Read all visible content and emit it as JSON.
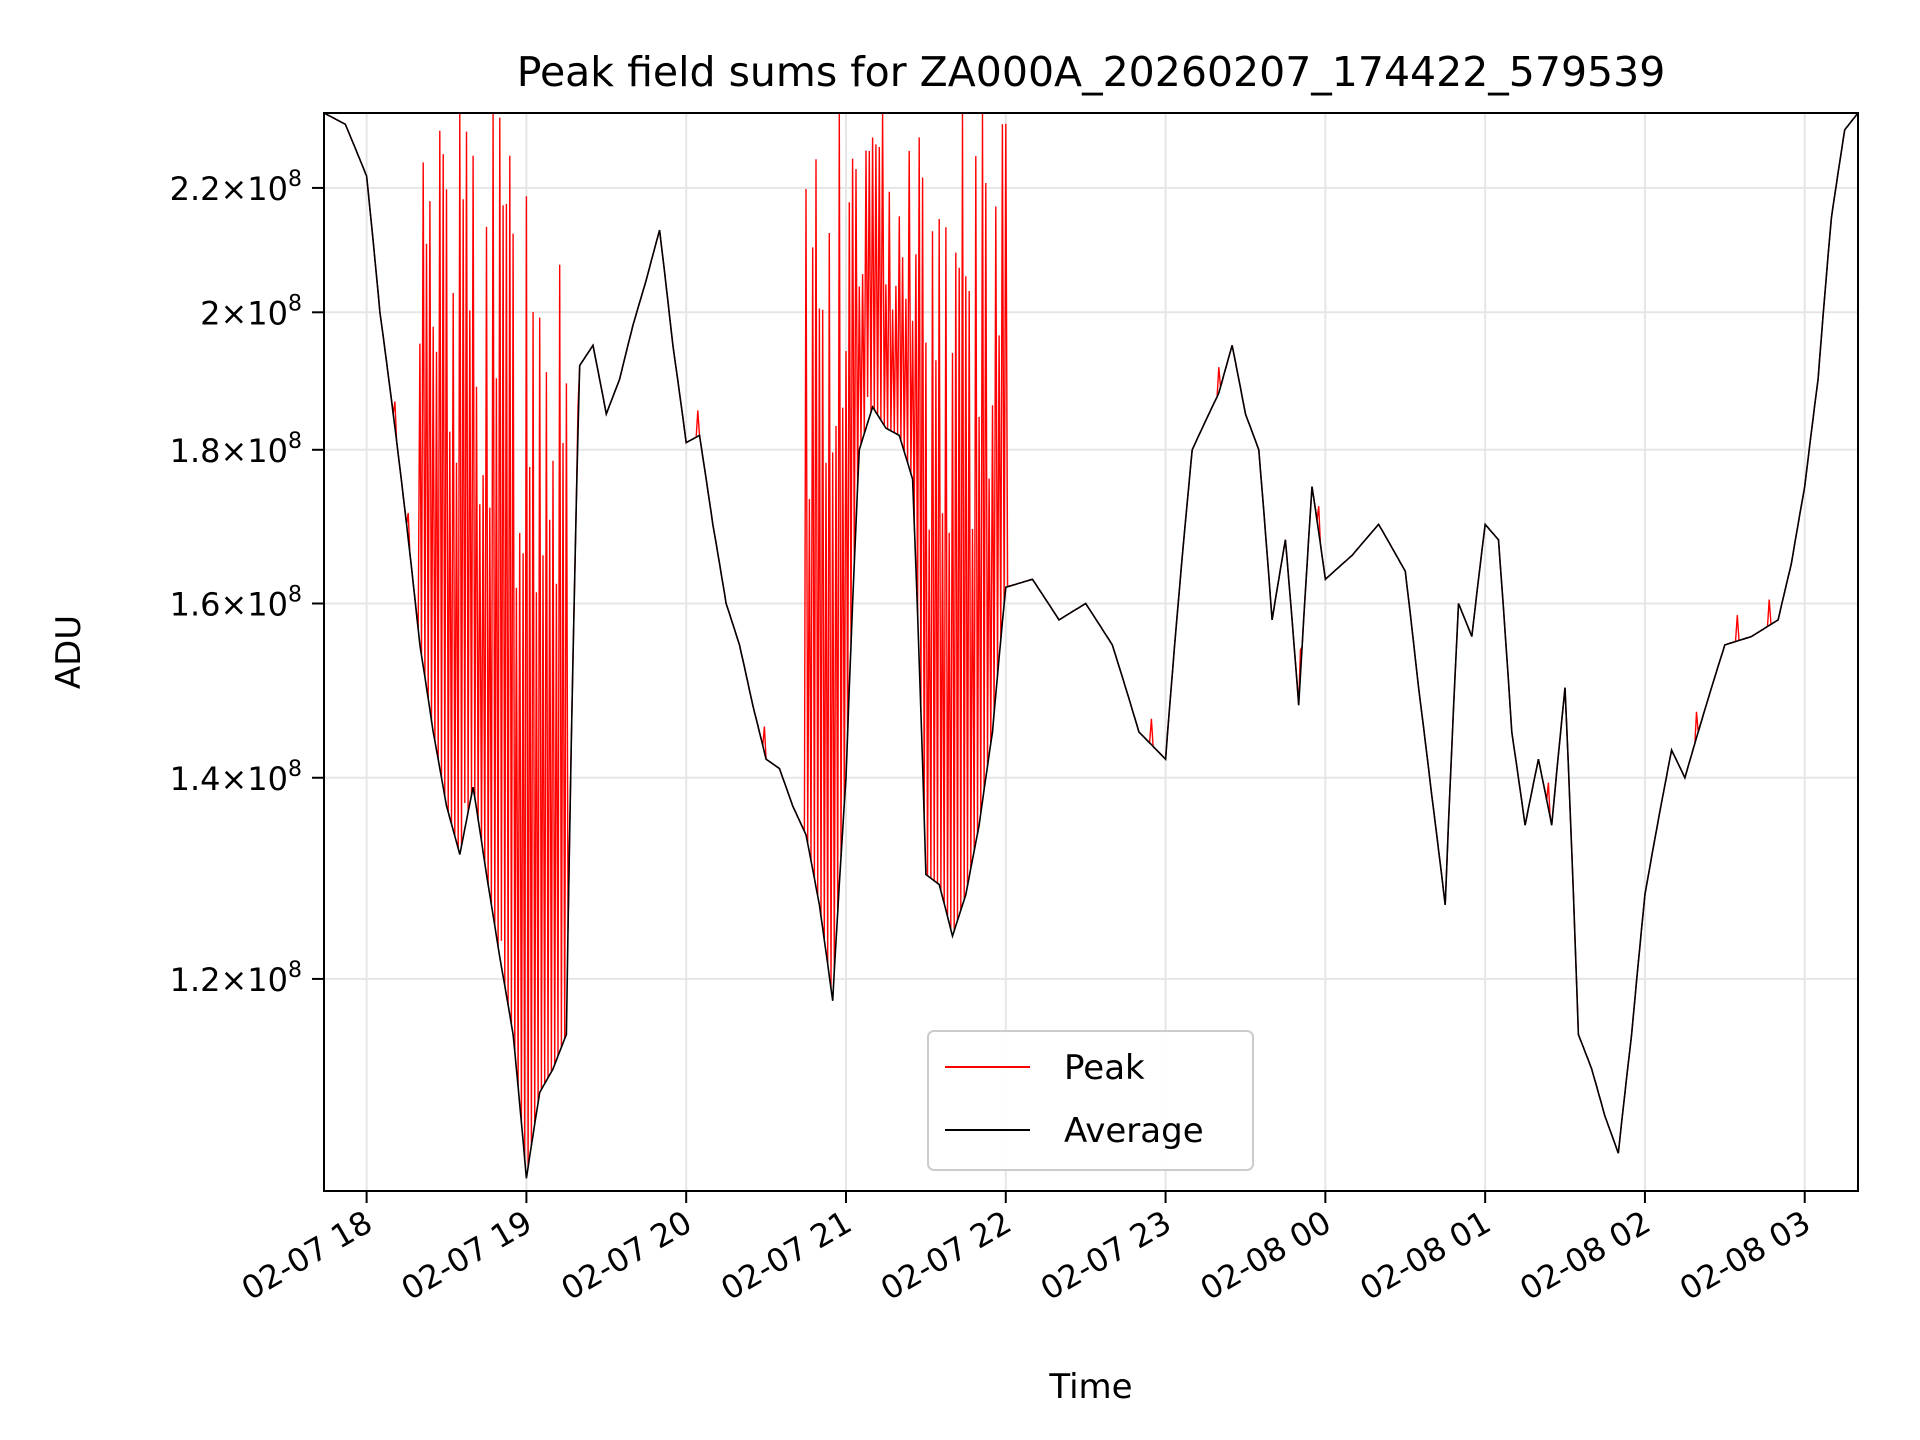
{
  "chart_data": {
    "type": "line",
    "title": "Peak field sums for ZA000A_20260207_174422_579539",
    "xlabel": "Time",
    "ylabel": "ADU",
    "y_scale": "log",
    "ylim": [
      102000000,
      233000000
    ],
    "xlim": [
      "2026-02-07 17:44",
      "2026-02-08 03:20"
    ],
    "x_ticks": [
      {
        "label": "02-07 18",
        "value": "2026-02-07 18:00"
      },
      {
        "label": "02-07 19",
        "value": "2026-02-07 19:00"
      },
      {
        "label": "02-07 20",
        "value": "2026-02-07 20:00"
      },
      {
        "label": "02-07 21",
        "value": "2026-02-07 21:00"
      },
      {
        "label": "02-07 22",
        "value": "2026-02-07 22:00"
      },
      {
        "label": "02-07 23",
        "value": "2026-02-07 23:00"
      },
      {
        "label": "02-08 00",
        "value": "2026-02-08 00:00"
      },
      {
        "label": "02-08 01",
        "value": "2026-02-08 01:00"
      },
      {
        "label": "02-08 02",
        "value": "2026-02-08 02:00"
      },
      {
        "label": "02-08 03",
        "value": "2026-02-08 03:00"
      }
    ],
    "y_ticks": [
      {
        "mantissa": "1.2",
        "exp": "8",
        "value": 120000000
      },
      {
        "mantissa": "1.4",
        "exp": "8",
        "value": 140000000
      },
      {
        "mantissa": "1.6",
        "exp": "8",
        "value": 160000000
      },
      {
        "mantissa": "1.8",
        "exp": "8",
        "value": 180000000
      },
      {
        "mantissa": "2",
        "exp": "8",
        "value": 200000000
      },
      {
        "mantissa": "2.2",
        "exp": "8",
        "value": 220000000
      }
    ],
    "grid": true,
    "legend_position": "lower center",
    "series": [
      {
        "name": "Peak",
        "color": "#ff0000",
        "spiky_regions": [
          [
            "2026-02-07 18:20",
            "2026-02-07 19:15"
          ],
          [
            "2026-02-07 20:45",
            "2026-02-07 22:00"
          ]
        ]
      },
      {
        "name": "Average",
        "color": "#000000",
        "points": [
          [
            "2026-02-07 17:44",
            233000000
          ],
          [
            "2026-02-07 17:52",
            231000000
          ],
          [
            "2026-02-07 18:00",
            222000000
          ],
          [
            "2026-02-07 18:05",
            200000000
          ],
          [
            "2026-02-07 18:10",
            185000000
          ],
          [
            "2026-02-07 18:15",
            170000000
          ],
          [
            "2026-02-07 18:20",
            155000000
          ],
          [
            "2026-02-07 18:25",
            145000000
          ],
          [
            "2026-02-07 18:30",
            137000000
          ],
          [
            "2026-02-07 18:35",
            132000000
          ],
          [
            "2026-02-07 18:40",
            139000000
          ],
          [
            "2026-02-07 18:45",
            130000000
          ],
          [
            "2026-02-07 18:50",
            122000000
          ],
          [
            "2026-02-07 18:55",
            115000000
          ],
          [
            "2026-02-07 19:00",
            103000000
          ],
          [
            "2026-02-07 19:05",
            110000000
          ],
          [
            "2026-02-07 19:10",
            112000000
          ],
          [
            "2026-02-07 19:15",
            115000000
          ],
          [
            "2026-02-07 19:20",
            192000000
          ],
          [
            "2026-02-07 19:25",
            195000000
          ],
          [
            "2026-02-07 19:30",
            185000000
          ],
          [
            "2026-02-07 19:35",
            190000000
          ],
          [
            "2026-02-07 19:40",
            198000000
          ],
          [
            "2026-02-07 19:45",
            205000000
          ],
          [
            "2026-02-07 19:50",
            213000000
          ],
          [
            "2026-02-07 19:55",
            195000000
          ],
          [
            "2026-02-07 20:00",
            181000000
          ],
          [
            "2026-02-07 20:05",
            182000000
          ],
          [
            "2026-02-07 20:10",
            170000000
          ],
          [
            "2026-02-07 20:15",
            160000000
          ],
          [
            "2026-02-07 20:20",
            155000000
          ],
          [
            "2026-02-07 20:25",
            148000000
          ],
          [
            "2026-02-07 20:30",
            142000000
          ],
          [
            "2026-02-07 20:35",
            141000000
          ],
          [
            "2026-02-07 20:40",
            137000000
          ],
          [
            "2026-02-07 20:45",
            134000000
          ],
          [
            "2026-02-07 20:50",
            127000000
          ],
          [
            "2026-02-07 20:55",
            118000000
          ],
          [
            "2026-02-07 21:00",
            140000000
          ],
          [
            "2026-02-07 21:05",
            180000000
          ],
          [
            "2026-02-07 21:10",
            186000000
          ],
          [
            "2026-02-07 21:15",
            183000000
          ],
          [
            "2026-02-07 21:20",
            182000000
          ],
          [
            "2026-02-07 21:25",
            176000000
          ],
          [
            "2026-02-07 21:30",
            130000000
          ],
          [
            "2026-02-07 21:35",
            129000000
          ],
          [
            "2026-02-07 21:40",
            124000000
          ],
          [
            "2026-02-07 21:45",
            128000000
          ],
          [
            "2026-02-07 21:50",
            135000000
          ],
          [
            "2026-02-07 21:55",
            145000000
          ],
          [
            "2026-02-07 22:00",
            162000000
          ],
          [
            "2026-02-07 22:10",
            163000000
          ],
          [
            "2026-02-07 22:20",
            158000000
          ],
          [
            "2026-02-07 22:30",
            160000000
          ],
          [
            "2026-02-07 22:40",
            155000000
          ],
          [
            "2026-02-07 22:50",
            145000000
          ],
          [
            "2026-02-07 23:00",
            142000000
          ],
          [
            "2026-02-07 23:10",
            180000000
          ],
          [
            "2026-02-07 23:20",
            188000000
          ],
          [
            "2026-02-07 23:25",
            195000000
          ],
          [
            "2026-02-07 23:30",
            185000000
          ],
          [
            "2026-02-07 23:35",
            180000000
          ],
          [
            "2026-02-07 23:40",
            158000000
          ],
          [
            "2026-02-07 23:45",
            168000000
          ],
          [
            "2026-02-07 23:50",
            148000000
          ],
          [
            "2026-02-07 23:55",
            175000000
          ],
          [
            "2026-02-08 00:00",
            163000000
          ],
          [
            "2026-02-08 00:10",
            166000000
          ],
          [
            "2026-02-08 00:20",
            170000000
          ],
          [
            "2026-02-08 00:30",
            164000000
          ],
          [
            "2026-02-08 00:35",
            150000000
          ],
          [
            "2026-02-08 00:40",
            138000000
          ],
          [
            "2026-02-08 00:45",
            127000000
          ],
          [
            "2026-02-08 00:50",
            160000000
          ],
          [
            "2026-02-08 00:55",
            156000000
          ],
          [
            "2026-02-08 01:00",
            170000000
          ],
          [
            "2026-02-08 01:05",
            168000000
          ],
          [
            "2026-02-08 01:10",
            145000000
          ],
          [
            "2026-02-08 01:15",
            135000000
          ],
          [
            "2026-02-08 01:20",
            142000000
          ],
          [
            "2026-02-08 01:25",
            135000000
          ],
          [
            "2026-02-08 01:30",
            150000000
          ],
          [
            "2026-02-08 01:35",
            115000000
          ],
          [
            "2026-02-08 01:40",
            112000000
          ],
          [
            "2026-02-08 01:45",
            108000000
          ],
          [
            "2026-02-08 01:50",
            105000000
          ],
          [
            "2026-02-08 01:55",
            115000000
          ],
          [
            "2026-02-08 02:00",
            128000000
          ],
          [
            "2026-02-08 02:10",
            143000000
          ],
          [
            "2026-02-08 02:15",
            140000000
          ],
          [
            "2026-02-08 02:20",
            145000000
          ],
          [
            "2026-02-08 02:30",
            155000000
          ],
          [
            "2026-02-08 02:40",
            156000000
          ],
          [
            "2026-02-08 02:50",
            158000000
          ],
          [
            "2026-02-08 02:55",
            165000000
          ],
          [
            "2026-02-08 03:00",
            175000000
          ],
          [
            "2026-02-08 03:05",
            190000000
          ],
          [
            "2026-02-08 03:10",
            215000000
          ],
          [
            "2026-02-08 03:15",
            230000000
          ],
          [
            "2026-02-08 03:20",
            233000000
          ]
        ]
      }
    ]
  }
}
